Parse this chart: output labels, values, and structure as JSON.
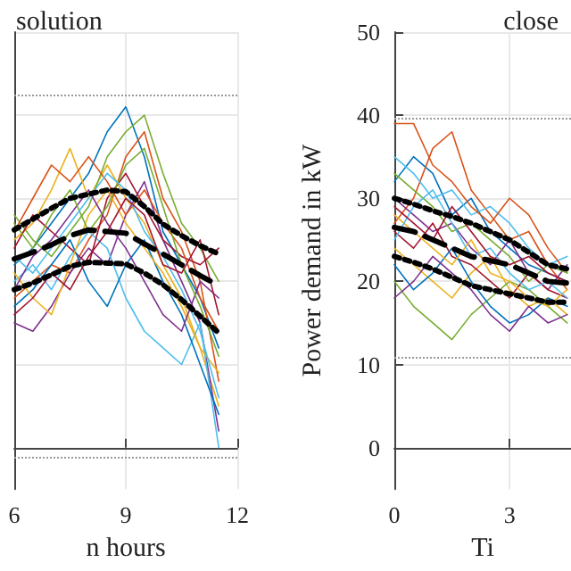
{
  "chart_data": [
    {
      "type": "line",
      "title": "solution",
      "xlabel": "n hours",
      "x": [
        6,
        6.5,
        7,
        7.5,
        8,
        8.5,
        9,
        9.5,
        10,
        10.5,
        11,
        11.5
      ],
      "xlim": [
        6,
        12
      ],
      "xticks": [
        6,
        9,
        12
      ],
      "ylim": [
        -5,
        50
      ],
      "yticks": [
        0,
        10,
        20,
        30,
        40,
        50
      ],
      "tick_labels": "x",
      "grid": true,
      "marker": "none",
      "line_style": "solid",
      "ref_lines": [
        {
          "axis": "y",
          "value": 42.5,
          "color": "#999999",
          "line_style": "dotted"
        },
        {
          "axis": "y",
          "value": -1.2,
          "color": "#999999",
          "line_style": "dotted"
        }
      ],
      "series": [
        {
          "color": "#0072bd",
          "values": [
            22,
            24,
            27,
            30,
            33,
            38,
            41,
            35,
            26,
            22,
            18,
            12
          ]
        },
        {
          "color": "#d95319",
          "values": [
            18,
            20,
            22,
            21,
            25,
            28,
            35,
            38,
            30,
            26,
            20,
            8
          ]
        },
        {
          "color": "#edb120",
          "values": [
            25,
            27,
            31,
            36,
            30,
            34,
            30,
            27,
            22,
            18,
            12,
            5
          ]
        },
        {
          "color": "#7e2f8e",
          "values": [
            15,
            14,
            17,
            21,
            24,
            22,
            28,
            32,
            25,
            20,
            15,
            2
          ]
        },
        {
          "color": "#77ac30",
          "values": [
            28,
            25,
            23,
            26,
            29,
            35,
            38,
            40,
            33,
            27,
            24,
            20
          ]
        },
        {
          "color": "#4dbeee",
          "values": [
            20,
            22,
            19,
            23,
            26,
            24,
            18,
            14,
            12,
            10,
            15,
            0
          ]
        },
        {
          "color": "#a2142f",
          "values": [
            24,
            28,
            26,
            24,
            22,
            30,
            33,
            29,
            25,
            23,
            22,
            24
          ]
        },
        {
          "color": "#0072bd",
          "values": [
            17,
            19,
            22,
            25,
            20,
            17,
            22,
            25,
            20,
            16,
            10,
            4
          ]
        },
        {
          "color": "#d95319",
          "values": [
            26,
            30,
            34,
            32,
            35,
            32,
            28,
            31,
            27,
            24,
            18,
            14
          ]
        },
        {
          "color": "#edb120",
          "values": [
            21,
            18,
            16,
            22,
            28,
            31,
            27,
            24,
            21,
            17,
            12,
            9
          ]
        },
        {
          "color": "#7e2f8e",
          "values": [
            19,
            23,
            25,
            28,
            31,
            27,
            24,
            20,
            16,
            14,
            20,
            18
          ]
        },
        {
          "color": "#77ac30",
          "values": [
            27,
            24,
            28,
            31,
            26,
            29,
            34,
            36,
            29,
            22,
            17,
            11
          ]
        },
        {
          "color": "#4dbeee",
          "values": [
            23,
            21,
            24,
            27,
            30,
            33,
            31,
            26,
            23,
            19,
            14,
            6
          ]
        },
        {
          "color": "#a2142f",
          "values": [
            16,
            18,
            21,
            19,
            23,
            26,
            30,
            28,
            22,
            21,
            25,
            16
          ]
        },
        {
          "color": "#000000",
          "line_style": "dotted",
          "values": [
            26.2,
            27.5,
            28.8,
            30,
            30.5,
            31,
            30.8,
            29,
            26.9,
            25.5,
            24.3,
            23.3
          ]
        },
        {
          "color": "#000000",
          "line_style": "dashed",
          "values": [
            22.7,
            23.5,
            24.4,
            25.5,
            26.2,
            26,
            25.8,
            24.5,
            23.3,
            22,
            20.7,
            19.5
          ]
        },
        {
          "color": "#000000",
          "line_style": "dotted",
          "values": [
            19,
            19.8,
            20.8,
            21.8,
            22.3,
            22.2,
            22.1,
            21,
            19.6,
            17.8,
            15.8,
            13.8
          ]
        }
      ]
    },
    {
      "type": "line",
      "title": "close",
      "xlabel": "Ti",
      "ylabel": "Power demand in kW",
      "x": [
        0,
        0.5,
        1,
        1.5,
        2,
        2.5,
        3,
        3.5,
        4,
        4.5
      ],
      "xlim": [
        0,
        4.6
      ],
      "xticks": [
        0,
        3
      ],
      "ylim": [
        -5,
        50
      ],
      "yticks": [
        0,
        10,
        20,
        30,
        40,
        50
      ],
      "grid": true,
      "marker": "none",
      "line_style": "solid",
      "ref_lines": [
        {
          "axis": "y",
          "value": 39.6,
          "color": "#999999",
          "line_style": "dotted"
        },
        {
          "axis": "y",
          "value": 10.8,
          "color": "#999999",
          "line_style": "dotted"
        }
      ],
      "series": [
        {
          "color": "#0072bd",
          "values": [
            32,
            35,
            33,
            28,
            30,
            26,
            24,
            22,
            21,
            20
          ]
        },
        {
          "color": "#d95319",
          "values": [
            27,
            30,
            36,
            38,
            31,
            28,
            25,
            26,
            22,
            19
          ]
        },
        {
          "color": "#edb120",
          "values": [
            24,
            22,
            20,
            18,
            21,
            23,
            19,
            17,
            18,
            16
          ]
        },
        {
          "color": "#7e2f8e",
          "values": [
            30,
            28,
            26,
            27,
            24,
            22,
            25,
            21,
            19,
            22
          ]
        },
        {
          "color": "#77ac30",
          "values": [
            20,
            17,
            15,
            13,
            16,
            18,
            20,
            19,
            17,
            15
          ]
        },
        {
          "color": "#4dbeee",
          "values": [
            35,
            33,
            30,
            31,
            28,
            29,
            27,
            24,
            22,
            23
          ]
        },
        {
          "color": "#a2142f",
          "values": [
            26,
            24,
            27,
            23,
            22,
            20,
            18,
            21,
            19,
            18
          ]
        },
        {
          "color": "#0072bd",
          "values": [
            22,
            19,
            21,
            24,
            20,
            17,
            15,
            16,
            18,
            17
          ]
        },
        {
          "color": "#d95319",
          "values": [
            39,
            39,
            34,
            32,
            29,
            27,
            30,
            28,
            24,
            21
          ]
        },
        {
          "color": "#edb120",
          "values": [
            28,
            26,
            24,
            22,
            25,
            21,
            20,
            18,
            17,
            19
          ]
        },
        {
          "color": "#7e2f8e",
          "values": [
            18,
            20,
            23,
            21,
            19,
            16,
            14,
            17,
            15,
            16
          ]
        },
        {
          "color": "#77ac30",
          "values": [
            33,
            31,
            29,
            26,
            27,
            25,
            23,
            20,
            22,
            21
          ]
        },
        {
          "color": "#4dbeee",
          "values": [
            25,
            29,
            31,
            27,
            23,
            24,
            21,
            19,
            20,
            18
          ]
        },
        {
          "color": "#a2142f",
          "values": [
            29,
            27,
            25,
            29,
            26,
            23,
            22,
            23,
            21,
            20
          ]
        },
        {
          "color": "#000000",
          "line_style": "dotted",
          "values": [
            30,
            29.3,
            28.5,
            27.8,
            27,
            26,
            25,
            23.5,
            22,
            21.5
          ]
        },
        {
          "color": "#000000",
          "line_style": "dashed",
          "values": [
            26.5,
            26,
            25,
            24,
            23,
            22.5,
            22,
            21,
            20,
            19.8
          ]
        },
        {
          "color": "#000000",
          "line_style": "dotted",
          "values": [
            23,
            22.3,
            21.5,
            20.5,
            19.5,
            19,
            18.5,
            18,
            17.5,
            17.5
          ]
        }
      ]
    }
  ]
}
